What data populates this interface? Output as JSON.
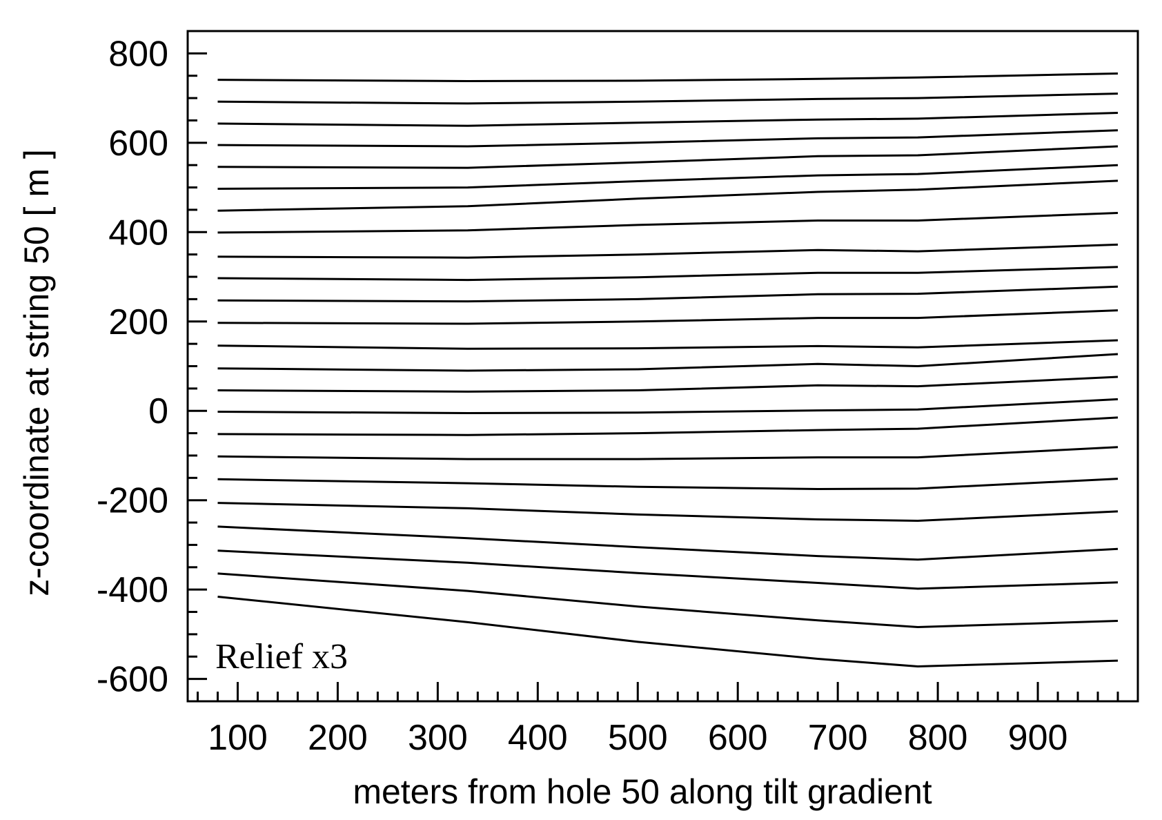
{
  "chart_data": {
    "type": "line",
    "xlabel": "meters from hole 50 along tilt gradient",
    "ylabel": "z-coordinate at string 50 [ m ]",
    "annotation": "Relief x3",
    "xlim": [
      50,
      1000
    ],
    "ylim": [
      -650,
      850
    ],
    "x_major_ticks": [
      100,
      200,
      300,
      400,
      500,
      600,
      700,
      800,
      900
    ],
    "x_minor_step": 20,
    "y_major_ticks": [
      -600,
      -400,
      -200,
      0,
      200,
      400,
      600,
      800
    ],
    "y_minor_step": 50,
    "grid": false,
    "line_color": "#000000",
    "x": [
      80,
      330,
      500,
      680,
      780,
      980
    ],
    "series": [
      {
        "values": [
          741,
          738,
          739,
          743,
          746,
          755
        ]
      },
      {
        "values": [
          692,
          688,
          692,
          698,
          700,
          710
        ]
      },
      {
        "values": [
          643,
          638,
          645,
          652,
          654,
          667
        ]
      },
      {
        "values": [
          595,
          592,
          600,
          610,
          612,
          628
        ]
      },
      {
        "values": [
          546,
          544,
          556,
          570,
          572,
          592
        ]
      },
      {
        "values": [
          497,
          500,
          514,
          527,
          530,
          550
        ]
      },
      {
        "values": [
          448,
          458,
          475,
          490,
          495,
          515
        ]
      },
      {
        "values": [
          399,
          404,
          416,
          426,
          426,
          443
        ]
      },
      {
        "values": [
          345,
          343,
          350,
          360,
          357,
          372
        ]
      },
      {
        "values": [
          297,
          293,
          299,
          309,
          309,
          322
        ]
      },
      {
        "values": [
          247,
          245,
          250,
          261,
          262,
          278
        ]
      },
      {
        "values": [
          197,
          195,
          200,
          208,
          208,
          225
        ]
      },
      {
        "values": [
          146,
          139,
          140,
          145,
          142,
          158
        ]
      },
      {
        "values": [
          95,
          90,
          93,
          105,
          100,
          127
        ]
      },
      {
        "values": [
          46,
          43,
          46,
          57,
          55,
          76
        ]
      },
      {
        "values": [
          -2,
          -5,
          -4,
          1,
          3,
          26
        ]
      },
      {
        "values": [
          -52,
          -54,
          -50,
          -43,
          -40,
          -15
        ]
      },
      {
        "values": [
          -102,
          -108,
          -108,
          -104,
          -104,
          -81
        ]
      },
      {
        "values": [
          -153,
          -162,
          -170,
          -175,
          -174,
          -152
        ]
      },
      {
        "values": [
          -206,
          -218,
          -232,
          -243,
          -246,
          -225
        ]
      },
      {
        "values": [
          -259,
          -285,
          -305,
          -325,
          -333,
          -309
        ]
      },
      {
        "values": [
          -313,
          -340,
          -363,
          -385,
          -398,
          -384
        ]
      },
      {
        "values": [
          -364,
          -403,
          -438,
          -469,
          -484,
          -470
        ]
      },
      {
        "values": [
          -416,
          -473,
          -517,
          -555,
          -572,
          -559
        ]
      }
    ]
  }
}
